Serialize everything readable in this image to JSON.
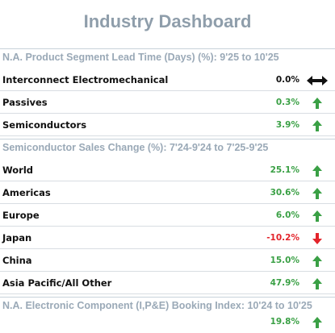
{
  "title": "Industry Dashboard",
  "sections": [
    {
      "heading": "N.A. Product Segment Lead Time (Days) (%): 9'25 to 10'25",
      "rows": [
        {
          "label": "Interconnect Electromechanical",
          "value": "0.0%",
          "trend": "flat"
        },
        {
          "label": "Passives",
          "value": "0.3%",
          "trend": "up"
        },
        {
          "label": "Semiconductors",
          "value": "3.9%",
          "trend": "up"
        }
      ]
    },
    {
      "heading": "Semiconductor Sales Change (%): 7'24-9'24 to 7'25-9'25",
      "rows": [
        {
          "label": "World",
          "value": "25.1%",
          "trend": "up"
        },
        {
          "label": "Americas",
          "value": "30.6%",
          "trend": "up"
        },
        {
          "label": "Europe",
          "value": "6.0%",
          "trend": "up"
        },
        {
          "label": "Japan",
          "value": "-10.2%",
          "trend": "down"
        },
        {
          "label": "China",
          "value": "15.0%",
          "trend": "up"
        },
        {
          "label": "Asia Pacific/All Other",
          "value": "47.9%",
          "trend": "up"
        }
      ]
    },
    {
      "heading": "N.A. Electronic Component (I,P&E) Booking Index: 10'24 to 10'25",
      "rows": [
        {
          "label": "",
          "value": "19.8%",
          "trend": "up"
        }
      ]
    }
  ],
  "icons": {
    "up": "arrow-up-icon",
    "down": "arrow-down-icon",
    "flat": "arrow-left-right-icon"
  },
  "colors": {
    "title": "#8f9eab",
    "section_heading": "#9aa9b7",
    "up": "#3aa045",
    "down": "#e3242b",
    "flat": "#111111"
  }
}
